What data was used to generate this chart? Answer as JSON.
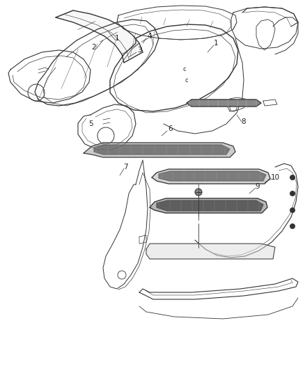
{
  "bg_color": "#ffffff",
  "line_color": "#333333",
  "dark_color": "#555555",
  "label_color": "#222222",
  "label_fontsize": 7.5,
  "fig_width": 4.38,
  "fig_height": 5.33,
  "dpi": 100
}
